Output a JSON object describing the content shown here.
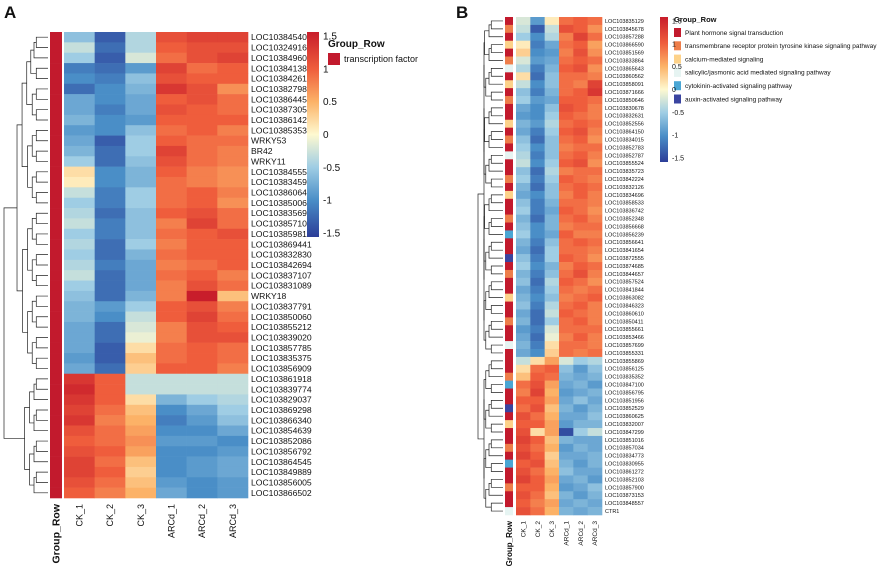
{
  "chart_data": [
    {
      "type": "heatmap",
      "panel": "A",
      "columns": [
        "CK_1",
        "CK_2",
        "CK_3",
        "ARCd_1",
        "ARCd_2",
        "ARCd_3"
      ],
      "rows": [
        "LOC103845403",
        "LOC103249160",
        "LOC103849604",
        "LOC103841382",
        "LOC103842612",
        "LOC103827988",
        "LOC103864458",
        "LOC103873053",
        "LOC103861423",
        "LOC103853537",
        "WRKY53",
        "BR42",
        "WRKY11",
        "LOC103845552",
        "LOC103834590",
        "LOC103860642",
        "LOC103850061",
        "LOC103835698",
        "LOC103857101",
        "LOC103859816",
        "LOC103869441",
        "LOC103832830",
        "LOC103842694",
        "LOC103837107",
        "LOC103831089",
        "WRKY18",
        "LOC103837791",
        "LOC103850060",
        "LOC103855212",
        "LOC103839020",
        "LOC103857785",
        "LOC103835375",
        "LOC103856909",
        "LOC103861918",
        "LOC103839774",
        "LOC103829037",
        "LOC103869298",
        "LOC103866340",
        "LOC103854639",
        "LOC103852086",
        "LOC103856792",
        "LOC103864545",
        "LOC103849889",
        "LOC103856005",
        "LOC103866502"
      ],
      "row_annotation_title": "Group_Row",
      "row_annotation_legend": [
        "transcription factor"
      ],
      "row_annotation_colors": [
        "#c21a2d"
      ],
      "scale_ticks": [
        1.5,
        1,
        0.5,
        0,
        -0.5,
        -1,
        -1.5
      ],
      "value_range": [
        -1.5,
        1.5
      ],
      "bottom_label": "Group_Row",
      "values": [
        [
          -0.6,
          -1.3,
          -0.4,
          1.1,
          1.2,
          1.2
        ],
        [
          -0.3,
          -1.2,
          -0.4,
          1.0,
          1.1,
          1.1
        ],
        [
          -0.5,
          -1.3,
          -0.2,
          0.9,
          1.1,
          1.2
        ],
        [
          -1.1,
          -1.2,
          -0.9,
          1.2,
          0.9,
          1.0
        ],
        [
          -1.0,
          -1.1,
          -0.6,
          1.1,
          1.0,
          1.0
        ],
        [
          -1.2,
          -1.0,
          -0.7,
          1.3,
          1.1,
          0.7
        ],
        [
          -0.8,
          -1.0,
          -0.8,
          1.0,
          1.1,
          0.9
        ],
        [
          -0.8,
          -1.1,
          -0.8,
          1.1,
          1.0,
          0.9
        ],
        [
          -0.7,
          -1.0,
          -0.9,
          1.0,
          1.0,
          1.0
        ],
        [
          -0.9,
          -1.0,
          -0.6,
          0.9,
          1.0,
          0.8
        ],
        [
          -0.8,
          -1.3,
          -0.5,
          1.0,
          0.9,
          0.9
        ],
        [
          -0.7,
          -1.2,
          -0.5,
          1.2,
          0.9,
          0.8
        ],
        [
          -0.5,
          -1.2,
          -0.6,
          1.1,
          0.9,
          0.8
        ],
        [
          0.2,
          -1.0,
          -0.7,
          1.0,
          0.8,
          0.7
        ],
        [
          0.1,
          -1.0,
          -0.7,
          0.9,
          0.8,
          0.7
        ],
        [
          -0.3,
          -1.1,
          -0.5,
          0.9,
          1.0,
          0.8
        ],
        [
          -0.5,
          -1.1,
          -0.5,
          0.9,
          1.0,
          0.7
        ],
        [
          -0.4,
          -1.2,
          -0.6,
          1.0,
          1.1,
          0.9
        ],
        [
          -0.3,
          -1.1,
          -0.6,
          0.8,
          1.2,
          0.9
        ],
        [
          -0.5,
          -1.1,
          -0.6,
          0.9,
          1.0,
          1.1
        ],
        [
          -0.4,
          -1.2,
          -0.5,
          0.8,
          1.0,
          1.0
        ],
        [
          -0.5,
          -1.2,
          -0.7,
          0.9,
          1.0,
          1.0
        ],
        [
          -0.4,
          -1.1,
          -0.8,
          0.8,
          0.9,
          1.0
        ],
        [
          -0.3,
          -1.2,
          -0.8,
          0.9,
          1.0,
          0.8
        ],
        [
          -0.5,
          -1.2,
          -0.8,
          0.8,
          1.1,
          0.9
        ],
        [
          -0.6,
          -1.2,
          -0.7,
          0.8,
          1.5,
          0.4
        ],
        [
          -0.7,
          -0.9,
          -0.5,
          1.0,
          1.1,
          0.8
        ],
        [
          -0.7,
          -1.0,
          -0.3,
          1.0,
          1.2,
          0.9
        ],
        [
          -0.8,
          -1.2,
          -0.2,
          0.8,
          1.1,
          1.0
        ],
        [
          -0.8,
          -1.2,
          -0.1,
          0.8,
          1.1,
          1.1
        ],
        [
          -0.8,
          -1.3,
          0.2,
          0.9,
          1.0,
          0.9
        ],
        [
          -0.9,
          -1.3,
          0.4,
          0.9,
          1.0,
          0.9
        ],
        [
          -0.8,
          -1.2,
          0.3,
          1.0,
          1.0,
          0.8
        ],
        [
          1.3,
          1.0,
          -0.3,
          -0.3,
          -0.3,
          -0.3
        ],
        [
          1.4,
          1.0,
          -0.3,
          -0.3,
          -0.3,
          -0.3
        ],
        [
          1.3,
          1.0,
          0.2,
          -0.7,
          -0.5,
          -0.4
        ],
        [
          1.2,
          0.9,
          0.4,
          -1.0,
          -0.8,
          -0.5
        ],
        [
          1.3,
          0.8,
          0.5,
          -1.1,
          -0.9,
          -0.6
        ],
        [
          1.1,
          0.9,
          0.6,
          -1.0,
          -1.0,
          -0.8
        ],
        [
          1.0,
          0.9,
          0.7,
          -0.9,
          -0.9,
          -1.0
        ],
        [
          1.1,
          1.0,
          0.6,
          -1.0,
          -1.0,
          -0.9
        ],
        [
          1.2,
          0.9,
          0.4,
          -1.0,
          -0.9,
          -0.8
        ],
        [
          1.2,
          1.0,
          0.3,
          -1.0,
          -0.9,
          -0.8
        ],
        [
          1.1,
          0.9,
          0.4,
          -0.9,
          -1.0,
          -0.9
        ],
        [
          1.0,
          0.8,
          0.5,
          -0.8,
          -1.0,
          -0.9
        ]
      ]
    },
    {
      "type": "heatmap",
      "panel": "B",
      "columns": [
        "CK_1",
        "CK_2",
        "CK_3",
        "ARCd_1",
        "ARCd_2",
        "ARCd_3"
      ],
      "rows": [
        "LOC103835129",
        "LOC103845678",
        "LOC103857288",
        "LOC103866590",
        "LOC103851569",
        "LOC103833864",
        "LOC103865643",
        "LOC103860562",
        "LOC103858091",
        "LOC103871666",
        "LOC103850646",
        "LOC103830678",
        "LOC103832631",
        "LOC103852556",
        "LOC103864150",
        "LOC103834015",
        "LOC103852783",
        "LOC103852787",
        "LOC103855524",
        "LOC103835723",
        "LOC103842224",
        "LOC103832126",
        "LOC103834696",
        "LOC103858533",
        "LOC103836742",
        "LOC103852348",
        "LOC103856668",
        "LOC103856239",
        "LOC103856641",
        "LOC103841654",
        "LOC103872555",
        "LOC103874685",
        "LOC103844657",
        "LOC103857524",
        "LOC103841844",
        "LOC103863082",
        "LOC103846323",
        "LOC103860610",
        "LOC103850411",
        "LOC103855661",
        "LOC103853466",
        "LOC103857699",
        "LOC103855331",
        "LOC103855869",
        "LOC103856125",
        "LOC103835352",
        "LOC103847100",
        "LOC103856795",
        "LOC103851956",
        "LOC103852529",
        "LOC103860625",
        "LOC103832007",
        "LOC103847299",
        "LOC103851016",
        "LOC103857034",
        "LOC103834773",
        "LOC103830955",
        "LOC103861272",
        "LOC103852103",
        "LOC103857900",
        "LOC103873153",
        "LOC103848557",
        "CTR1"
      ],
      "row_annotation_title": "Group_Row",
      "row_annotation_legend": [
        "Plant hormone signal transduction",
        "transmembrane receptor protein tyrosine kinase signaling pathway",
        "calcium-mediated signaling",
        "salicylic/jasmonic acid mediated signaling pathway",
        "cytokinin-activated signaling pathway",
        "auxin-activated signaling pathway"
      ],
      "row_annotation_colors": [
        "#c21a2d",
        "#ee7e4a",
        "#fdd28a",
        "#e6f4f2",
        "#4aa6d4",
        "#3a44a0"
      ],
      "row_groups": [
        0,
        1,
        0,
        2,
        0,
        1,
        3,
        0,
        2,
        0,
        1,
        0,
        0,
        2,
        0,
        1,
        0,
        3,
        0,
        0,
        1,
        0,
        2,
        0,
        0,
        1,
        0,
        4,
        0,
        0,
        5,
        0,
        1,
        0,
        0,
        2,
        0,
        0,
        1,
        0,
        0,
        3,
        0,
        0,
        0,
        1,
        4,
        0,
        0,
        5,
        0,
        2,
        0,
        0,
        1,
        0,
        4,
        0,
        0,
        1,
        0,
        0,
        3
      ],
      "scale_ticks": [
        1.5,
        1,
        0.5,
        0,
        -0.5,
        -1,
        -1.5
      ],
      "value_range": [
        -1.5,
        1.5
      ],
      "bottom_label": "Group_Row",
      "values": [
        [
          -0.2,
          -0.9,
          0.1,
          0.9,
          1.0,
          0.9
        ],
        [
          -0.3,
          -1.3,
          -0.3,
          1.1,
          1.0,
          0.7
        ],
        [
          -0.5,
          -1.0,
          -0.4,
          0.8,
          1.2,
          0.9
        ],
        [
          0.1,
          -1.1,
          -0.8,
          0.9,
          1.0,
          0.6
        ],
        [
          0.3,
          -1.0,
          -0.9,
          0.8,
          1.1,
          0.7
        ],
        [
          -0.2,
          -0.9,
          -0.8,
          0.9,
          1.0,
          0.9
        ],
        [
          -0.4,
          -1.1,
          -0.7,
          1.0,
          1.1,
          0.7
        ],
        [
          0.2,
          -1.2,
          -0.6,
          0.9,
          0.9,
          0.8
        ],
        [
          -0.3,
          -1.0,
          -0.6,
          0.9,
          0.8,
          1.2
        ],
        [
          -0.6,
          -1.1,
          -0.7,
          0.9,
          1.0,
          1.3
        ],
        [
          -0.5,
          -0.9,
          -0.8,
          1.0,
          1.0,
          0.9
        ],
        [
          -0.8,
          -1.0,
          -0.6,
          1.1,
          1.0,
          0.8
        ],
        [
          -0.9,
          -1.0,
          -0.5,
          1.0,
          0.9,
          0.8
        ],
        [
          -0.7,
          -0.9,
          -0.4,
          0.9,
          1.0,
          0.9
        ],
        [
          -0.8,
          -1.1,
          -0.5,
          1.0,
          1.1,
          0.8
        ],
        [
          -0.6,
          -1.2,
          -0.6,
          0.9,
          1.0,
          0.7
        ],
        [
          -0.5,
          -1.0,
          -0.6,
          0.8,
          0.9,
          0.9
        ],
        [
          -0.4,
          -1.1,
          -0.6,
          0.9,
          1.0,
          0.8
        ],
        [
          -0.3,
          -1.0,
          -0.5,
          1.0,
          1.1,
          0.7
        ],
        [
          -0.6,
          -1.2,
          -0.4,
          0.8,
          0.9,
          0.9
        ],
        [
          -0.5,
          -1.1,
          -0.5,
          1.0,
          0.9,
          0.8
        ],
        [
          -0.7,
          -1.2,
          -0.6,
          0.9,
          1.0,
          0.9
        ],
        [
          -0.8,
          -1.0,
          -0.6,
          0.8,
          1.0,
          0.8
        ],
        [
          -0.6,
          -1.1,
          -0.7,
          0.9,
          0.9,
          0.8
        ],
        [
          -0.5,
          -1.1,
          -0.8,
          1.0,
          0.9,
          0.7
        ],
        [
          -0.7,
          -1.2,
          -0.7,
          0.9,
          1.0,
          0.8
        ],
        [
          -0.6,
          -1.0,
          -0.7,
          0.8,
          0.9,
          0.9
        ],
        [
          -0.5,
          -1.0,
          -0.8,
          1.0,
          0.8,
          0.8
        ],
        [
          -0.7,
          -1.1,
          -0.6,
          0.9,
          1.0,
          0.9
        ],
        [
          -0.8,
          -1.2,
          -0.5,
          0.9,
          0.9,
          0.8
        ],
        [
          -0.6,
          -1.1,
          -0.5,
          1.0,
          0.9,
          0.7
        ],
        [
          -0.5,
          -1.0,
          -0.7,
          0.8,
          1.0,
          0.9
        ],
        [
          -0.7,
          -1.1,
          -0.6,
          0.9,
          1.1,
          0.8
        ],
        [
          -0.6,
          -1.2,
          -0.4,
          1.0,
          0.9,
          0.7
        ],
        [
          -0.8,
          -1.1,
          -0.5,
          0.9,
          0.8,
          0.9
        ],
        [
          -0.7,
          -1.0,
          -0.6,
          0.8,
          0.9,
          1.0
        ],
        [
          -0.6,
          -1.1,
          -0.4,
          0.9,
          1.0,
          0.8
        ],
        [
          -0.8,
          -1.2,
          -0.3,
          1.0,
          0.9,
          0.8
        ],
        [
          -0.7,
          -1.2,
          -0.5,
          0.9,
          1.0,
          0.8
        ],
        [
          -0.9,
          -1.1,
          -0.2,
          0.9,
          0.9,
          0.9
        ],
        [
          -0.8,
          -1.2,
          -0.1,
          0.8,
          1.0,
          0.8
        ],
        [
          -0.7,
          -1.1,
          0.2,
          0.9,
          0.9,
          0.8
        ],
        [
          -0.8,
          -1.0,
          0.3,
          0.9,
          0.8,
          0.9
        ],
        [
          -0.3,
          0.2,
          0.6,
          -0.2,
          -0.5,
          -0.4
        ],
        [
          0.2,
          0.9,
          1.0,
          -0.6,
          -0.9,
          -0.6
        ],
        [
          0.4,
          1.0,
          0.9,
          -0.7,
          -0.8,
          -0.7
        ],
        [
          0.9,
          1.1,
          0.6,
          -0.8,
          -0.7,
          -0.9
        ],
        [
          0.8,
          1.2,
          0.5,
          -0.9,
          -0.8,
          -0.7
        ],
        [
          1.0,
          1.0,
          0.6,
          -0.8,
          -0.6,
          -0.8
        ],
        [
          0.9,
          1.1,
          0.4,
          -0.7,
          -0.9,
          -0.7
        ],
        [
          1.1,
          0.9,
          0.5,
          -0.8,
          -0.8,
          -0.6
        ],
        [
          1.0,
          1.0,
          0.6,
          -0.9,
          -0.7,
          -0.7
        ],
        [
          1.1,
          0.2,
          0.6,
          -1.4,
          -0.5,
          -0.3
        ],
        [
          1.2,
          1.0,
          0.4,
          -0.7,
          -0.8,
          -0.8
        ],
        [
          1.1,
          0.9,
          0.5,
          -0.9,
          -0.7,
          -0.8
        ],
        [
          1.2,
          1.0,
          0.3,
          -0.8,
          -0.8,
          -0.7
        ],
        [
          1.0,
          1.1,
          0.4,
          -0.7,
          -0.9,
          -0.7
        ],
        [
          1.1,
          0.9,
          0.5,
          -0.6,
          -0.8,
          -0.8
        ],
        [
          1.2,
          1.0,
          0.6,
          -0.8,
          -0.7,
          -0.9
        ],
        [
          1.0,
          1.0,
          0.5,
          -0.9,
          -0.8,
          -0.6
        ],
        [
          1.1,
          0.9,
          0.4,
          -0.7,
          -0.9,
          -0.7
        ],
        [
          1.0,
          0.8,
          0.6,
          -0.8,
          -0.7,
          -0.8
        ],
        [
          1.1,
          0.9,
          0.5,
          -0.7,
          -0.8,
          -0.7
        ]
      ]
    }
  ],
  "panels": {
    "a_label": "A",
    "b_label": "B"
  }
}
